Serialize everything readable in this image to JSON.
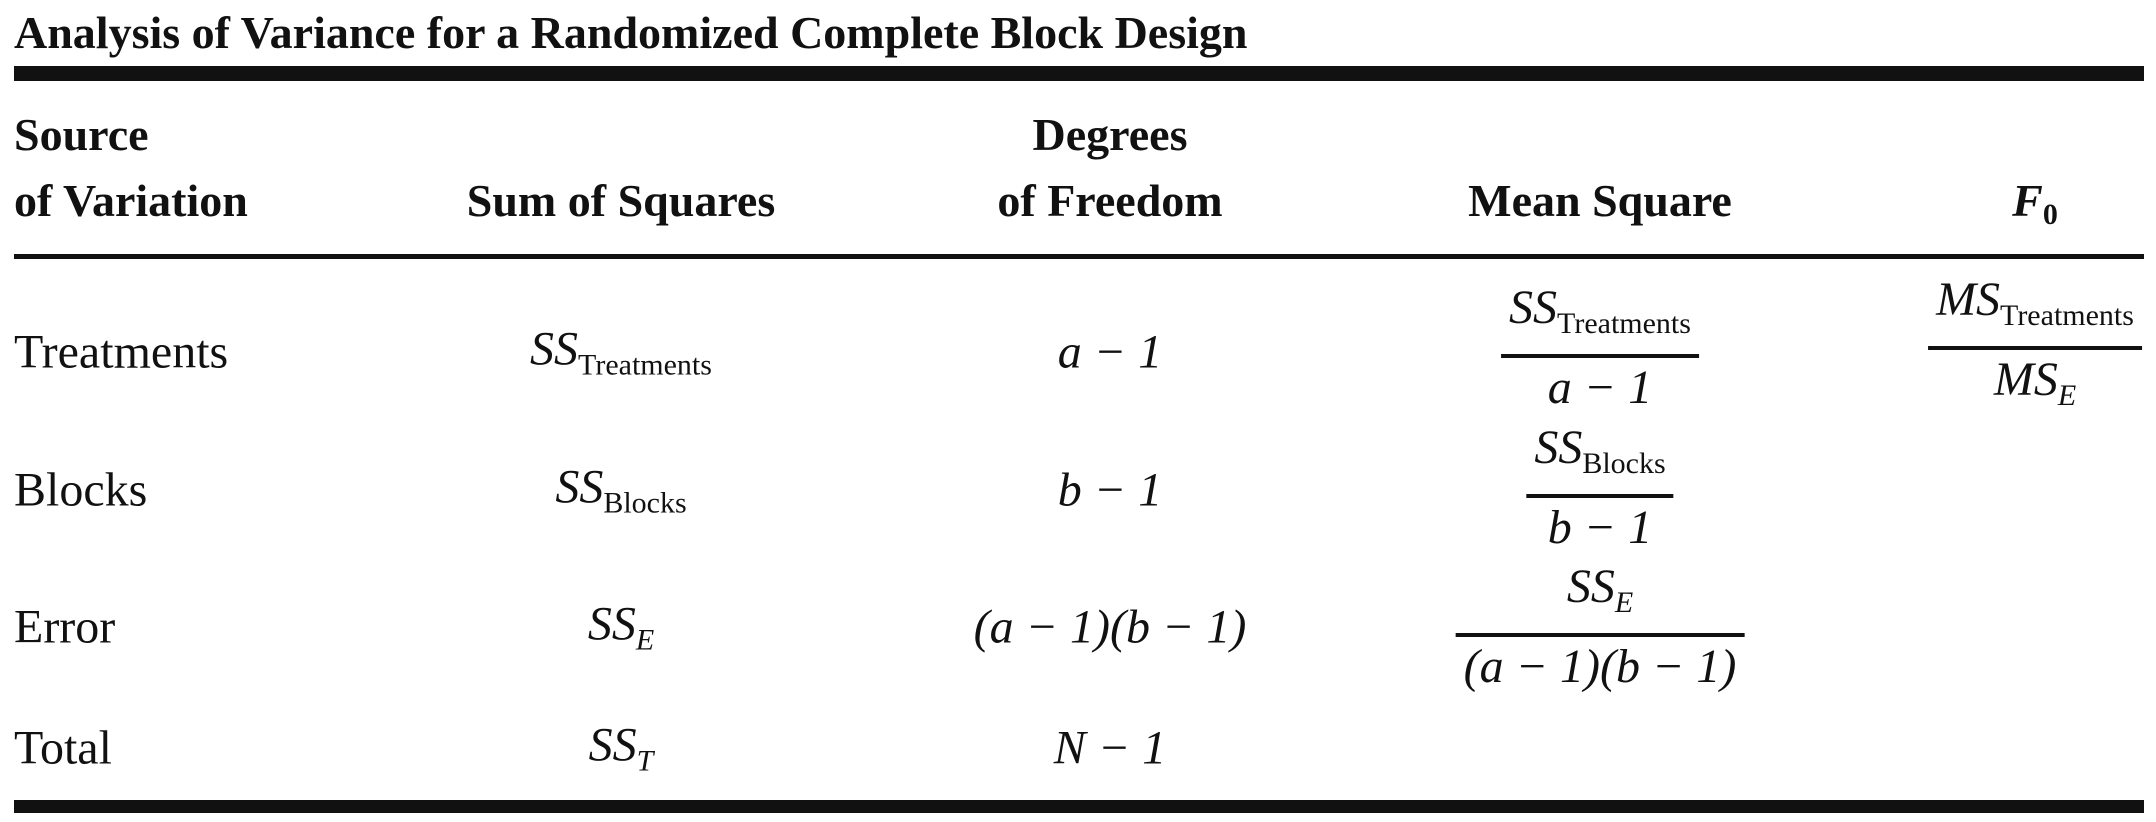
{
  "title": "Analysis of Variance for a Randomized Complete Block Design",
  "headers": {
    "source_line1": "Source",
    "source_line2": "of Variation",
    "sum_of_squares": "Sum of Squares",
    "df_line1": "Degrees",
    "df_line2": "of Freedom",
    "mean_square": "Mean Square",
    "f_symbol": "F",
    "f_subscript": "0"
  },
  "rows": [
    {
      "source": "Treatments",
      "ss_main": "SS",
      "ss_sub": "Treatments",
      "df": "a − 1",
      "ms_num_main": "SS",
      "ms_num_sub": "Treatments",
      "ms_den": "a − 1",
      "f_num_main": "MS",
      "f_num_sub": "Treatments",
      "f_den_main": "MS",
      "f_den_sub": "E"
    },
    {
      "source": "Blocks",
      "ss_main": "SS",
      "ss_sub": "Blocks",
      "df": "b − 1",
      "ms_num_main": "SS",
      "ms_num_sub": "Blocks",
      "ms_den": "b − 1"
    },
    {
      "source": "Error",
      "ss_main": "SS",
      "ss_sub": "E",
      "df": "(a − 1)(b − 1)",
      "ms_num_main": "SS",
      "ms_num_sub": "E",
      "ms_den": "(a − 1)(b − 1)"
    },
    {
      "source": "Total",
      "ss_main": "SS",
      "ss_sub": "T",
      "df": "N − 1"
    }
  ]
}
